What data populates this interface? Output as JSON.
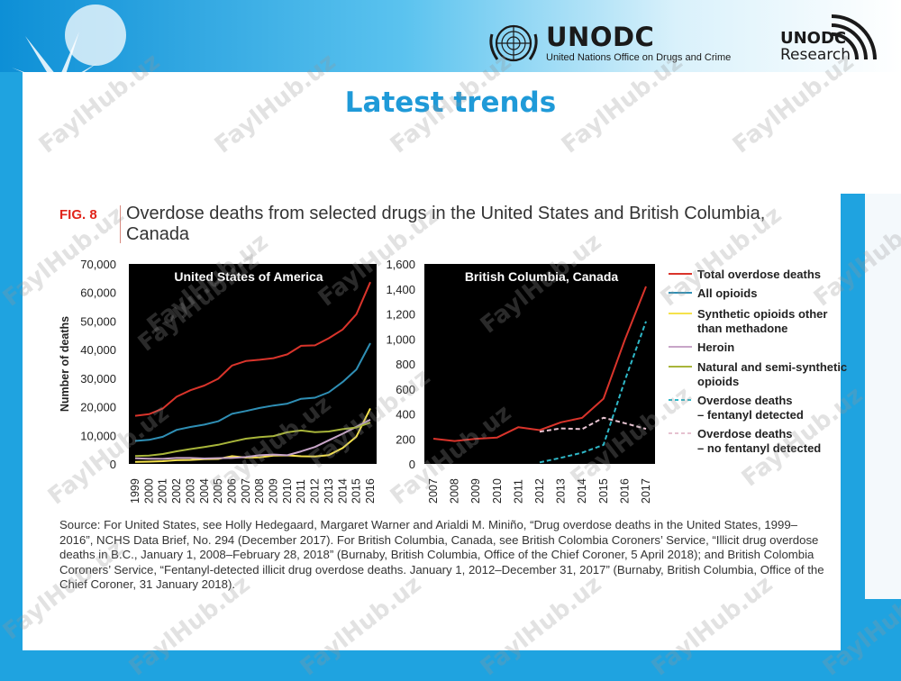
{
  "header": {
    "org_name": "UNODC",
    "org_subtitle": "United Nations Office on Drugs and Crime",
    "research_top": "UNODC",
    "research_bottom": "Research"
  },
  "page_title": "Latest trends",
  "figure": {
    "label": "FIG. 8",
    "title": "Overdose deaths from selected drugs in the United States and British Columbia, Canada"
  },
  "source_text": "Source: For United States, see Holly Hedegaard, Margaret Warner and Arialdi M. Miniño, “Drug overdose deaths in the United States, 1999–2016”, NCHS Data Brief, No. 294 (December 2017). For British Columbia, Canada, see British Colombia Coroners’ Service, “Illicit drug overdose deaths in B.C., January 1, 2008–February 28, 2018” (Burnaby, British Columbia, Office of the Chief Coroner, 5 April 2018); and British Colombia Coroners’ Service, “Fentanyl-detected illicit drug overdose deaths. January 1, 2012–December 31, 2017” (Burnaby, British Columbia, Office of the Chief Coroner, 31 January 2018).",
  "watermark": "FaylHub.uz",
  "colors": {
    "total": "#d9342b",
    "opioids": "#2f8fb5",
    "synthetic": "#f5e24c",
    "heroin": "#c8a5c8",
    "natural": "#a8b53a",
    "fentanyl": "#2fb8c8",
    "no_fentanyl": "#e6c2d0",
    "accent": "#1f9ad8"
  },
  "legend": [
    {
      "label": "Total overdose deaths",
      "color": "#d9342b",
      "dash": false
    },
    {
      "label": "All opioids",
      "color": "#2f8fb5",
      "dash": false
    },
    {
      "label": "Synthetic opioids other than methadone",
      "color": "#f5e24c",
      "dash": false
    },
    {
      "label": "Heroin",
      "color": "#c8a5c8",
      "dash": false
    },
    {
      "label": "Natural and semi-synthetic opioids",
      "color": "#a8b53a",
      "dash": false
    },
    {
      "label": "Overdose deaths – fentanyl detected",
      "color": "#2fb8c8",
      "dash": true
    },
    {
      "label": "Overdose deaths – no fentanyl detected",
      "color": "#e6c2d0",
      "dash": true
    }
  ],
  "chart_data": [
    {
      "type": "line",
      "title": "United States of America",
      "ylabel": "Number of deaths",
      "xlabel": "",
      "ylim": [
        0,
        70000
      ],
      "yticks": [
        "0",
        "10,000",
        "20,000",
        "30,000",
        "40,000",
        "50,000",
        "60,000",
        "70,000"
      ],
      "x": [
        "1999",
        "2000",
        "2001",
        "2002",
        "2003",
        "2004",
        "2005",
        "2006",
        "2007",
        "2008",
        "2009",
        "2010",
        "2011",
        "2012",
        "2013",
        "2014",
        "2015",
        "2016"
      ],
      "series": [
        {
          "name": "Total overdose deaths",
          "color": "#d9342b",
          "dash": false,
          "values": [
            16849,
            17415,
            19394,
            23518,
            25785,
            27424,
            29813,
            34425,
            36010,
            36450,
            37004,
            38329,
            41340,
            41502,
            43982,
            47055,
            52404,
            63632
          ]
        },
        {
          "name": "All opioids",
          "color": "#2f8fb5",
          "dash": false,
          "values": [
            8050,
            8407,
            9496,
            11920,
            12940,
            13756,
            14918,
            17545,
            18516,
            19582,
            20422,
            21089,
            22784,
            23166,
            25052,
            28647,
            33091,
            42249
          ]
        },
        {
          "name": "Synthetic opioids other than methadone",
          "color": "#f5e24c",
          "dash": false,
          "values": [
            730,
            782,
            957,
            1295,
            1400,
            1664,
            1742,
            2707,
            2213,
            2306,
            2946,
            3007,
            2666,
            2628,
            3105,
            5544,
            9580,
            19413
          ]
        },
        {
          "name": "Heroin",
          "color": "#c8a5c8",
          "dash": false,
          "values": [
            1960,
            1842,
            1779,
            2089,
            2080,
            1878,
            2009,
            2088,
            2399,
            3041,
            3278,
            3036,
            4397,
            5925,
            8257,
            10574,
            12989,
            15469
          ]
        },
        {
          "name": "Natural and semi-synthetic opioids",
          "color": "#a8b53a",
          "dash": false,
          "values": [
            2749,
            2917,
            3484,
            4416,
            5195,
            5917,
            6679,
            7781,
            8819,
            9399,
            9739,
            11064,
            11693,
            11140,
            11346,
            12159,
            12727,
            14487
          ]
        }
      ]
    },
    {
      "type": "line",
      "title": "British Columbia, Canada",
      "ylabel": "",
      "xlabel": "",
      "ylim": [
        0,
        1600
      ],
      "yticks": [
        "0",
        "200",
        "400",
        "600",
        "800",
        "1,000",
        "1,200",
        "1,400",
        "1,600"
      ],
      "x": [
        "2007",
        "2008",
        "2009",
        "2010",
        "2011",
        "2012",
        "2013",
        "2014",
        "2015",
        "2016",
        "2017"
      ],
      "series": [
        {
          "name": "Total overdose deaths",
          "color": "#d9342b",
          "dash": false,
          "values": [
            202,
            183,
            201,
            211,
            294,
            270,
            333,
            369,
            522,
            991,
            1420
          ]
        },
        {
          "name": "Overdose deaths – fentanyl detected",
          "color": "#2fb8c8",
          "dash": true,
          "values": [
            null,
            null,
            null,
            null,
            null,
            12,
            49,
            90,
            152,
            665,
            1140
          ]
        },
        {
          "name": "Overdose deaths – no fentanyl detected",
          "color": "#e6c2d0",
          "dash": true,
          "values": [
            null,
            null,
            null,
            null,
            null,
            258,
            284,
            279,
            370,
            326,
            280
          ]
        }
      ]
    }
  ]
}
